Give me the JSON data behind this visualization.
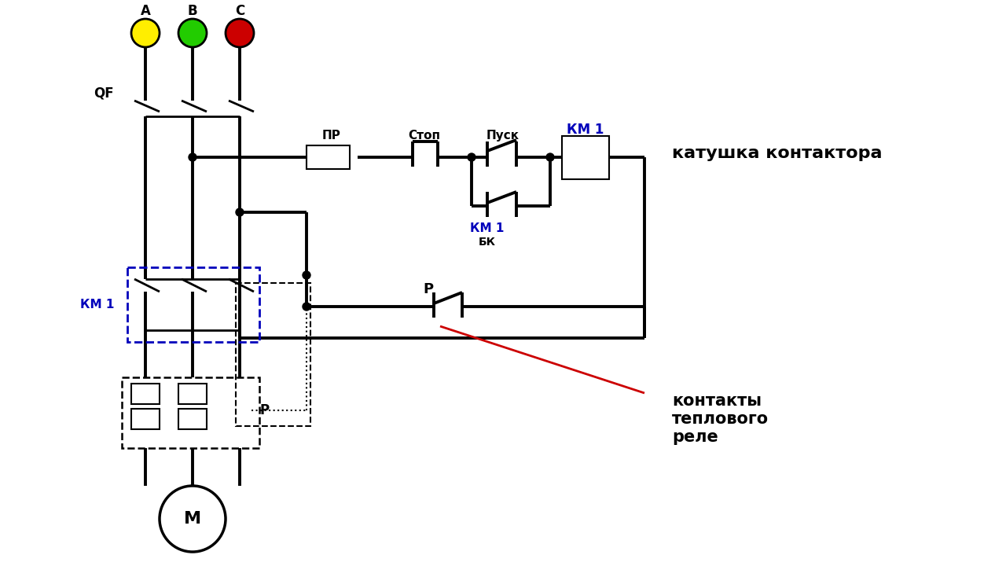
{
  "bg_color": "#ffffff",
  "line_color": "#000000",
  "blue_color": "#0000bb",
  "red_color": "#cc0000",
  "label_katushka": "катушка контактора",
  "label_kontakty": "контакты\nтеплового\nреле",
  "label_QF": "QF",
  "label_PR": "ПР",
  "label_Stop": "Стоп",
  "label_Pusk": "Пуск",
  "label_KM1_coil": "КМ 1",
  "label_KM1_main": "КМ 1",
  "label_KM1_bk": "КМ 1",
  "label_BK": "БК",
  "label_P_ctrl": "Р",
  "label_P_relay": "Р",
  "label_M": "М",
  "phase_colors": [
    "#ffee00",
    "#22cc00",
    "#cc0000"
  ],
  "phase_labels": [
    "А",
    "В",
    "С"
  ]
}
